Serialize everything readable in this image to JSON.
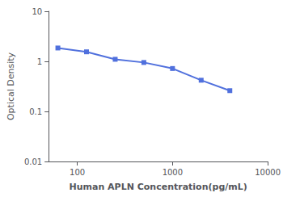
{
  "chart_data": {
    "type": "line",
    "x": [
      62.5,
      125,
      250,
      500,
      1000,
      2000,
      4000
    ],
    "values": [
      1.85,
      1.55,
      1.1,
      0.95,
      0.72,
      0.42,
      0.26
    ],
    "xlabel": "Human APLN Concentration(pg/mL)",
    "ylabel": "Optical Density",
    "xlim": [
      50,
      10000
    ],
    "ylim": [
      0.01,
      10
    ],
    "xticks": [
      100,
      1000,
      10000
    ],
    "yticks": [
      0.01,
      0.1,
      1,
      10
    ],
    "log": true,
    "grid": false,
    "marker": "square"
  }
}
